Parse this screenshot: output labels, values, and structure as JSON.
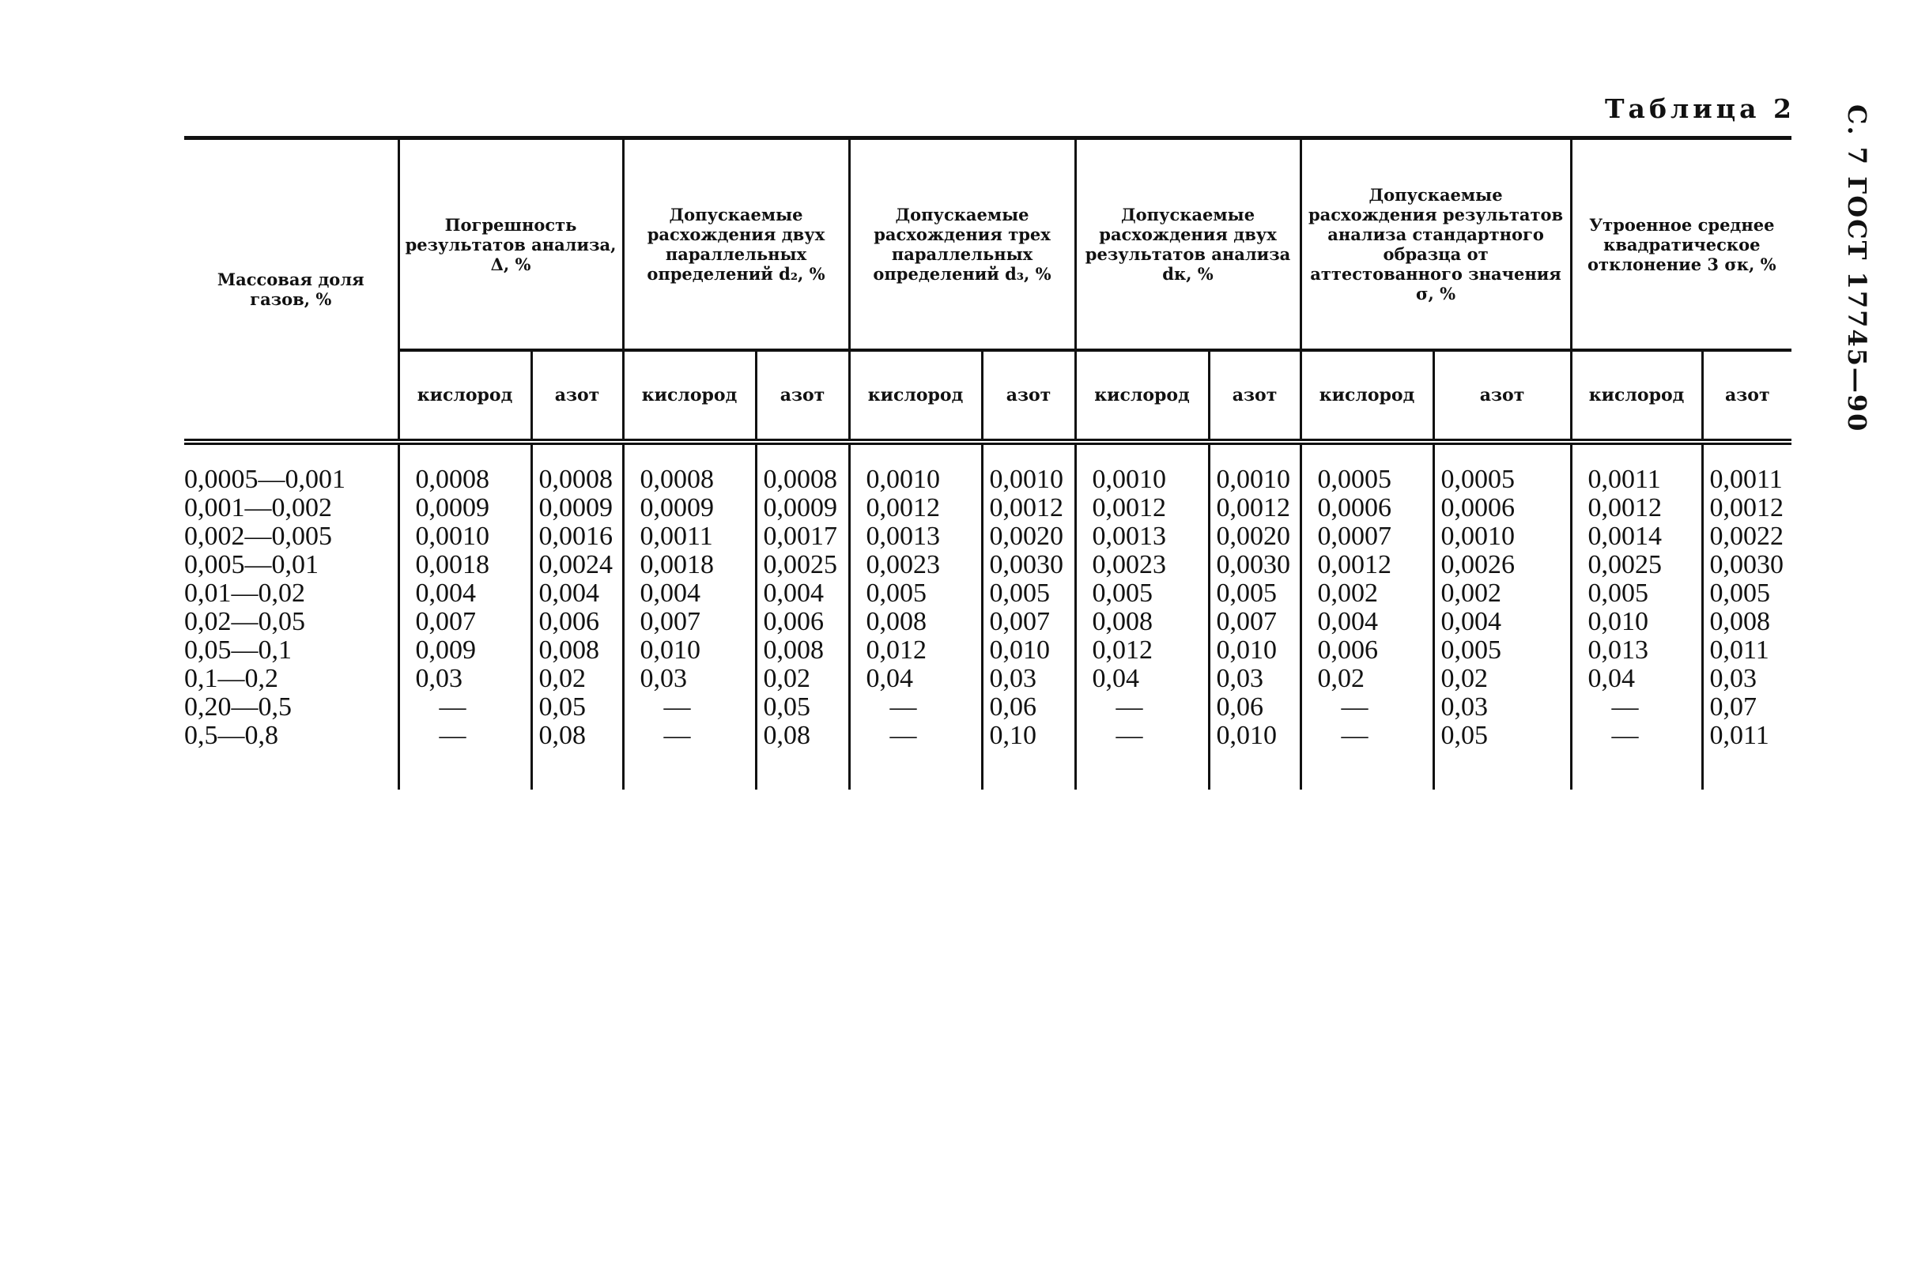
{
  "page": {
    "table_title": "Таблица 2",
    "side_label": "С. 7 ГОСТ 17745—90"
  },
  "table": {
    "first_header": "Массовая доля газов, %",
    "groups": [
      "Погрешность результатов анализа, Δ, %",
      "Допускаемые расхождения двух параллельных определений d₂, %",
      "Допускаемые расхождения трех параллельных определений d₃, %",
      "Допускаемые расхождения двух результатов анализа dк, %",
      "Допускаемые расхождения результатов анализа стандартного образца от аттестованного значения σ, %",
      "Утроенное среднее квадратическое отклонение 3 σк, %"
    ],
    "sub_headers": [
      "кислород",
      "азот"
    ],
    "rows_label": [
      "0,0005—0,001",
      "0,001—0,002",
      "0,002—0,005",
      "0,005—0,01",
      "0,01—0,02",
      "0,02—0,05",
      "0,05—0,1",
      "0,1—0,2",
      "0,20—0,5",
      "0,5—0,8"
    ],
    "columns": [
      [
        "0,0008",
        "0,0009",
        "0,0010",
        "0,0018",
        "0,004",
        "0,007",
        "0,009",
        "0,03",
        "—",
        "—"
      ],
      [
        "0,0008",
        "0,0009",
        "0,0016",
        "0,0024",
        "0,004",
        "0,006",
        "0,008",
        "0,02",
        "0,05",
        "0,08"
      ],
      [
        "0,0008",
        "0,0009",
        "0,0011",
        "0,0018",
        "0,004",
        "0,007",
        "0,010",
        "0,03",
        "—",
        "—"
      ],
      [
        "0,0008",
        "0,0009",
        "0,0017",
        "0,0025",
        "0,004",
        "0,006",
        "0,008",
        "0,02",
        "0,05",
        "0,08"
      ],
      [
        "0,0010",
        "0,0012",
        "0,0013",
        "0,0023",
        "0,005",
        "0,008",
        "0,012",
        "0,04",
        "—",
        "—"
      ],
      [
        "0,0010",
        "0,0012",
        "0,0020",
        "0,0030",
        "0,005",
        "0,007",
        "0,010",
        "0,03",
        "0,06",
        "0,10"
      ],
      [
        "0,0010",
        "0,0012",
        "0,0013",
        "0,0023",
        "0,005",
        "0,008",
        "0,012",
        "0,04",
        "—",
        "—"
      ],
      [
        "0,0010",
        "0,0012",
        "0,0020",
        "0,0030",
        "0,005",
        "0,007",
        "0,010",
        "0,03",
        "0,06",
        "0,010"
      ],
      [
        "0,0005",
        "0,0006",
        "0,0007",
        "0,0012",
        "0,002",
        "0,004",
        "0,006",
        "0,02",
        "—",
        "—"
      ],
      [
        "0,0005",
        "0,0006",
        "0,0010",
        "0,0026",
        "0,002",
        "0,004",
        "0,005",
        "0,02",
        "0,03",
        "0,05"
      ],
      [
        "0,0011",
        "0,0012",
        "0,0014",
        "0,0025",
        "0,005",
        "0,010",
        "0,013",
        "0,04",
        "—",
        "—"
      ],
      [
        "0,0011",
        "0,0012",
        "0,0022",
        "0,0030",
        "0,005",
        "0,008",
        "0,011",
        "0,03",
        "0,07",
        "0,011"
      ]
    ]
  }
}
